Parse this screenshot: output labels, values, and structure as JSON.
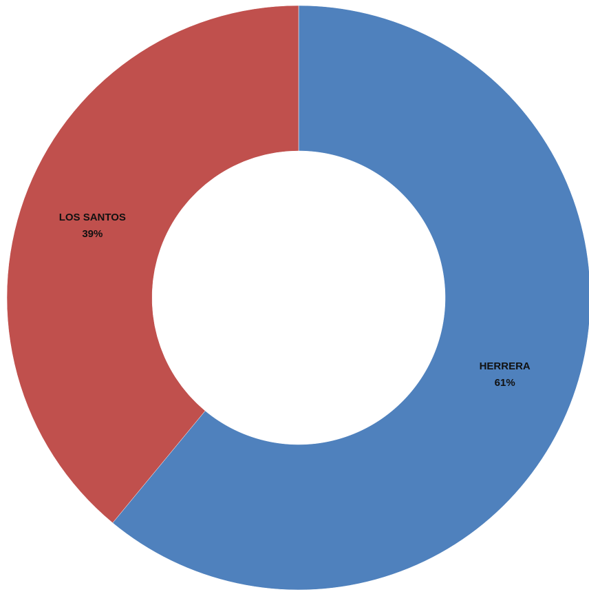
{
  "chart_data": {
    "type": "pie",
    "variant": "donut",
    "title": "",
    "slices": [
      {
        "name": "HERRERA",
        "value": 61,
        "percent_label": "61%",
        "color": "#4F81BD"
      },
      {
        "name": "LOS SANTOS",
        "value": 39,
        "percent_label": "39%",
        "color": "#C0504D"
      }
    ],
    "legend": "none",
    "start_angle": "12 o'clock",
    "direction": "clockwise"
  }
}
